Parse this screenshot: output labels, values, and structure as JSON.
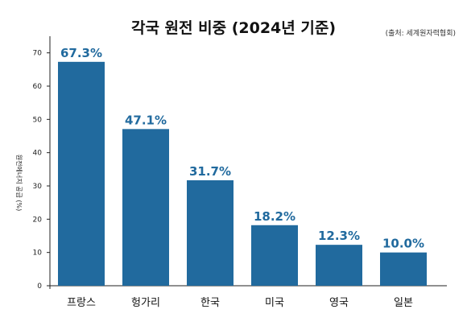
{
  "chart_data": {
    "type": "bar",
    "title": "각국 원전 비중 (2024년 기준)",
    "source": "(출처: 세계원자력협회)",
    "ylabel": "원전에너지 공급 (%)",
    "xlabel": "",
    "categories": [
      "프랑스",
      "헝가리",
      "한국",
      "미국",
      "영국",
      "일본"
    ],
    "values": [
      67.3,
      47.1,
      31.7,
      18.2,
      12.3,
      10.0
    ],
    "value_labels": [
      "67.3%",
      "47.1%",
      "31.7%",
      "18.2%",
      "12.3%",
      "10.0%"
    ],
    "yticks": [
      0,
      10,
      20,
      30,
      40,
      50,
      60,
      70
    ],
    "ylim": [
      0,
      75
    ],
    "grid": false,
    "colors": {
      "bar": "#216a9e",
      "label": "#216a9e",
      "axis": "#222222"
    }
  }
}
